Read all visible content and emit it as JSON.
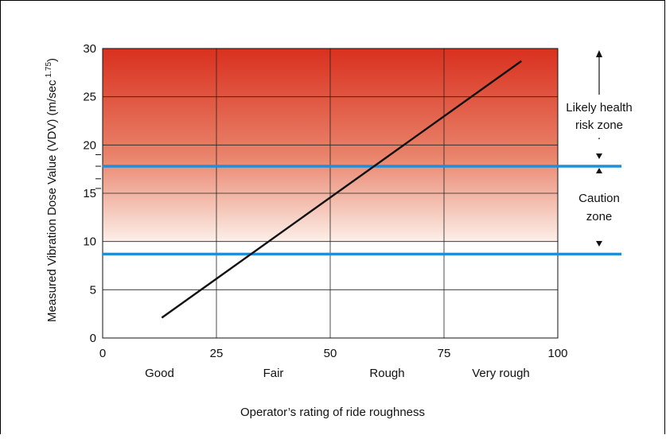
{
  "chart_data": {
    "type": "line",
    "xlabel": "Operator’s rating of ride roughness",
    "ylabel": "Measured Vibration Dose Value (VDV) (m/sec",
    "ylabel_exponent": "1.75",
    "ylabel_close": ")",
    "xlim": [
      0,
      100
    ],
    "ylim": [
      0,
      30
    ],
    "x_ticks": [
      "0",
      "25",
      "50",
      "75",
      "100"
    ],
    "y_ticks": [
      "0",
      "5",
      "10",
      "15",
      "20",
      "25",
      "30"
    ],
    "x_categories": [
      "Good",
      "Fair",
      "Rough",
      "Very rough"
    ],
    "grid": true,
    "series": [
      {
        "x": [
          13,
          92
        ],
        "y": [
          2.1,
          28.7
        ],
        "color": "#111111"
      }
    ],
    "thresholds": [
      {
        "y": 17.8,
        "color": "#1f8fd8"
      },
      {
        "y": 8.7,
        "color": "#1f8fd8"
      }
    ],
    "gradient": {
      "from_y": 10,
      "to_y": 30,
      "top_color": "#d9301e",
      "bottom_color": "#fcefe8"
    },
    "annotations": {
      "health_zone": [
        "Likely health",
        "risk zone"
      ],
      "caution_zone": [
        "Caution",
        "zone"
      ],
      "dots": "."
    }
  }
}
